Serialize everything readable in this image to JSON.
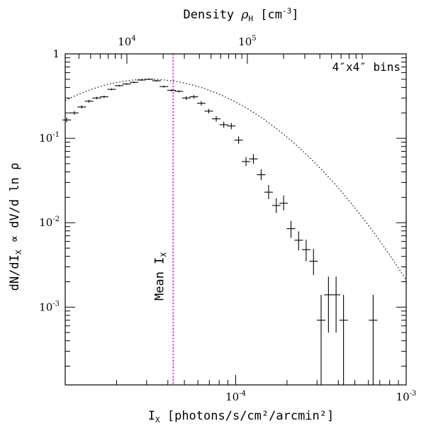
{
  "chart_data": {
    "type": "scatter",
    "title": "",
    "xlabel": "I_X [photons/s/cm²/arcmin²]",
    "xlabel_main": "I",
    "xlabel_sub": "X",
    "xlabel_rest": " [photons/s/cm²/arcmin²]",
    "ylabel": "dN/dI_X ∝ dV/d ln ρ",
    "ylabel_a": "dN/dI",
    "ylabel_sub": "X",
    "ylabel_b": " ∝ dV/d ln ρ",
    "top_xlabel": "Density ρ_H [cm⁻³]",
    "top_xlabel_a": "Density ",
    "top_xlabel_rho": "ρ",
    "top_xlabel_sub": "H",
    "top_xlabel_b": " [cm",
    "top_xlabel_sup": "-3",
    "top_xlabel_c": "]",
    "annotation": "4″x4″ bins",
    "mean_label": "Mean I",
    "mean_label_sub": "X",
    "mean_x": 4.3e-05,
    "x_scale": "log",
    "y_scale": "log",
    "xlim": [
      1e-05,
      0.001
    ],
    "ylim": [
      0.00012,
      1
    ],
    "x_ticks": [
      {
        "value": 0.0001,
        "mant": "10",
        "exp": "-4"
      },
      {
        "value": 0.001,
        "mant": "10",
        "exp": "-3"
      }
    ],
    "y_ticks": [
      {
        "value": 1,
        "label": "1",
        "mant": "",
        "exp": ""
      },
      {
        "value": 0.1,
        "label": "",
        "mant": "10",
        "exp": "-1"
      },
      {
        "value": 0.01,
        "label": "",
        "mant": "10",
        "exp": "-2"
      },
      {
        "value": 0.001,
        "label": "",
        "mant": "10",
        "exp": "-3"
      }
    ],
    "top_ticks": [
      {
        "value": 8.6e-05,
        "mant": "10",
        "exp": "4",
        "xpos": 2.3e-05
      },
      {
        "value": 0.00086,
        "mant": "10",
        "exp": "5",
        "xpos": 0.000117
      }
    ],
    "points": [
      {
        "x": 1.02e-05,
        "y": 0.165,
        "ylo": 0.155,
        "yhi": 0.176
      },
      {
        "x": 1.13e-05,
        "y": 0.2,
        "ylo": 0.19,
        "yhi": 0.21
      },
      {
        "x": 1.25e-05,
        "y": 0.235,
        "ylo": 0.225,
        "yhi": 0.245
      },
      {
        "x": 1.38e-05,
        "y": 0.275,
        "ylo": 0.265,
        "yhi": 0.285
      },
      {
        "x": 1.53e-05,
        "y": 0.3,
        "ylo": 0.29,
        "yhi": 0.31
      },
      {
        "x": 1.69e-05,
        "y": 0.31,
        "ylo": 0.3,
        "yhi": 0.32
      },
      {
        "x": 1.87e-05,
        "y": 0.38,
        "ylo": 0.37,
        "yhi": 0.39
      },
      {
        "x": 2.07e-05,
        "y": 0.42,
        "ylo": 0.41,
        "yhi": 0.43
      },
      {
        "x": 2.29e-05,
        "y": 0.44,
        "ylo": 0.43,
        "yhi": 0.45
      },
      {
        "x": 2.53e-05,
        "y": 0.46,
        "ylo": 0.45,
        "yhi": 0.47
      },
      {
        "x": 2.8e-05,
        "y": 0.49,
        "ylo": 0.48,
        "yhi": 0.5
      },
      {
        "x": 3.1e-05,
        "y": 0.5,
        "ylo": 0.49,
        "yhi": 0.51
      },
      {
        "x": 3.43e-05,
        "y": 0.48,
        "ylo": 0.47,
        "yhi": 0.49
      },
      {
        "x": 3.79e-05,
        "y": 0.41,
        "ylo": 0.4,
        "yhi": 0.42
      },
      {
        "x": 4.2e-05,
        "y": 0.37,
        "ylo": 0.36,
        "yhi": 0.38
      },
      {
        "x": 4.64e-05,
        "y": 0.36,
        "ylo": 0.35,
        "yhi": 0.37
      },
      {
        "x": 5.13e-05,
        "y": 0.3,
        "ylo": 0.285,
        "yhi": 0.315
      },
      {
        "x": 5.68e-05,
        "y": 0.31,
        "ylo": 0.295,
        "yhi": 0.325
      },
      {
        "x": 6.28e-05,
        "y": 0.26,
        "ylo": 0.245,
        "yhi": 0.275
      },
      {
        "x": 6.95e-05,
        "y": 0.21,
        "ylo": 0.197,
        "yhi": 0.223
      },
      {
        "x": 7.69e-05,
        "y": 0.17,
        "ylo": 0.158,
        "yhi": 0.183
      },
      {
        "x": 8.51e-05,
        "y": 0.145,
        "ylo": 0.133,
        "yhi": 0.157
      },
      {
        "x": 9.42e-05,
        "y": 0.14,
        "ylo": 0.128,
        "yhi": 0.152
      },
      {
        "x": 0.000104,
        "y": 0.095,
        "ylo": 0.086,
        "yhi": 0.105
      },
      {
        "x": 0.000115,
        "y": 0.053,
        "ylo": 0.047,
        "yhi": 0.06
      },
      {
        "x": 0.000127,
        "y": 0.057,
        "ylo": 0.05,
        "yhi": 0.065
      },
      {
        "x": 0.000141,
        "y": 0.037,
        "ylo": 0.032,
        "yhi": 0.043
      },
      {
        "x": 0.000156,
        "y": 0.023,
        "ylo": 0.019,
        "yhi": 0.028
      },
      {
        "x": 0.000173,
        "y": 0.016,
        "ylo": 0.013,
        "yhi": 0.0195
      },
      {
        "x": 0.000191,
        "y": 0.017,
        "ylo": 0.014,
        "yhi": 0.021
      },
      {
        "x": 0.000211,
        "y": 0.0085,
        "ylo": 0.0066,
        "yhi": 0.0105
      },
      {
        "x": 0.000234,
        "y": 0.0062,
        "ylo": 0.0047,
        "yhi": 0.0079
      },
      {
        "x": 0.000259,
        "y": 0.0048,
        "ylo": 0.0035,
        "yhi": 0.0063
      },
      {
        "x": 0.000286,
        "y": 0.0035,
        "ylo": 0.0024,
        "yhi": 0.0049
      },
      {
        "x": 0.000317,
        "y": 0.0007,
        "ylo": 0.00012,
        "yhi": 0.0014
      },
      {
        "x": 0.00035,
        "y": 0.0014,
        "ylo": 0.0005,
        "yhi": 0.0023
      },
      {
        "x": 0.000388,
        "y": 0.0014,
        "ylo": 0.0005,
        "yhi": 0.0023
      },
      {
        "x": 0.000429,
        "y": 0.0007,
        "ylo": 0.00012,
        "yhi": 0.0014
      },
      {
        "x": 0.00064,
        "y": 0.0007,
        "ylo": 0.00012,
        "yhi": 0.0014
      }
    ],
    "fit_curve": {
      "style": "dotted",
      "peak_x": 3.1e-05,
      "peak_y": 0.5,
      "sigma_ln": 1.05
    },
    "grid": false,
    "legend": "none"
  }
}
